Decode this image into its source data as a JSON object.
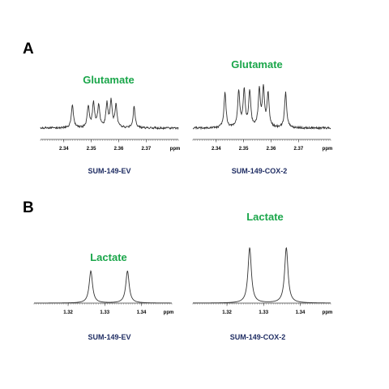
{
  "panels": [
    {
      "letter": "A",
      "compound": "Glutamate",
      "spectra": [
        {
          "sample": "SUM-149-EV"
        },
        {
          "sample": "SUM-149-COX-2"
        }
      ]
    },
    {
      "letter": "B",
      "compound": "Lactate",
      "spectra": [
        {
          "sample": "SUM-149-EV"
        },
        {
          "sample": "SUM-149-COX-2"
        }
      ]
    }
  ],
  "chart_data": [
    {
      "type": "line",
      "title": "Glutamate",
      "xlabel": "ppm",
      "sample": "SUM-149-EV",
      "xticks": [
        "2.34",
        "2.35",
        "2.36",
        "2.37"
      ],
      "xlim": [
        2.3315,
        2.3817
      ],
      "peaks_ppm": [
        2.3431,
        2.3489,
        2.3508,
        2.3527,
        2.3557,
        2.3572,
        2.359,
        2.3656
      ],
      "peaks_rel_height": [
        0.52,
        0.48,
        0.55,
        0.51,
        0.52,
        0.58,
        0.5,
        0.47
      ],
      "curve_color": "#333333"
    },
    {
      "type": "line",
      "title": "Glutamate",
      "xlabel": "ppm",
      "sample": "SUM-149-COX-2",
      "xticks": [
        "2.34",
        "2.35",
        "2.36",
        "2.37"
      ],
      "xlim": [
        2.3315,
        2.3817
      ],
      "peaks_ppm": [
        2.3432,
        2.3482,
        2.3502,
        2.3522,
        2.3557,
        2.3572,
        2.3589,
        2.3653
      ],
      "peaks_rel_height": [
        0.78,
        0.82,
        0.82,
        0.8,
        0.83,
        0.83,
        0.75,
        0.8
      ],
      "curve_color": "#333333"
    },
    {
      "type": "line",
      "title": "Lactate",
      "xlabel": "ppm",
      "sample": "SUM-149-EV",
      "xticks": [
        "1.32",
        "1.33",
        "1.34"
      ],
      "xlim": [
        1.3107,
        1.3483
      ],
      "peaks_ppm": [
        1.3262,
        1.3362
      ],
      "peaks_rel_height": [
        0.55,
        0.55
      ],
      "curve_color": "#333333"
    },
    {
      "type": "line",
      "title": "Lactate",
      "xlabel": "ppm",
      "sample": "SUM-149-COX-2",
      "xticks": [
        "1.32",
        "1.33",
        "1.34"
      ],
      "xlim": [
        1.3107,
        1.3483
      ],
      "peaks_ppm": [
        1.3262,
        1.3362
      ],
      "peaks_rel_height": [
        0.95,
        0.95
      ],
      "curve_color": "#333333"
    }
  ]
}
